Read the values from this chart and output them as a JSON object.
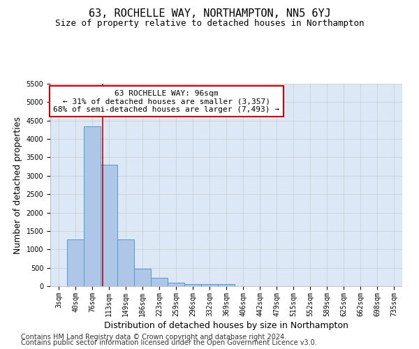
{
  "title": "63, ROCHELLE WAY, NORTHAMPTON, NN5 6YJ",
  "subtitle": "Size of property relative to detached houses in Northampton",
  "xlabel": "Distribution of detached houses by size in Northampton",
  "ylabel": "Number of detached properties",
  "footer_line1": "Contains HM Land Registry data © Crown copyright and database right 2024.",
  "footer_line2": "Contains public sector information licensed under the Open Government Licence v3.0.",
  "bin_labels": [
    "3sqm",
    "40sqm",
    "76sqm",
    "113sqm",
    "149sqm",
    "186sqm",
    "223sqm",
    "259sqm",
    "296sqm",
    "332sqm",
    "369sqm",
    "406sqm",
    "442sqm",
    "479sqm",
    "515sqm",
    "552sqm",
    "589sqm",
    "625sqm",
    "662sqm",
    "698sqm",
    "735sqm"
  ],
  "bar_values": [
    0,
    1270,
    4350,
    3300,
    1270,
    480,
    220,
    90,
    55,
    55,
    55,
    0,
    0,
    0,
    0,
    0,
    0,
    0,
    0,
    0,
    0
  ],
  "bar_color": "#aec6e8",
  "bar_edge_color": "#5599cc",
  "property_line_x": 2.62,
  "annotation_text": "63 ROCHELLE WAY: 96sqm\n← 31% of detached houses are smaller (3,357)\n68% of semi-detached houses are larger (7,493) →",
  "annotation_box_color": "#ffffff",
  "annotation_box_edge": "#cc0000",
  "vline_color": "#cc0000",
  "ylim": [
    0,
    5500
  ],
  "yticks": [
    0,
    500,
    1000,
    1500,
    2000,
    2500,
    3000,
    3500,
    4000,
    4500,
    5000,
    5500
  ],
  "background_color": "#ffffff",
  "grid_color": "#cccccc",
  "title_fontsize": 11,
  "subtitle_fontsize": 9,
  "axis_label_fontsize": 9,
  "tick_fontsize": 7,
  "annotation_fontsize": 8,
  "footer_fontsize": 7,
  "ylabel_fontsize": 9
}
